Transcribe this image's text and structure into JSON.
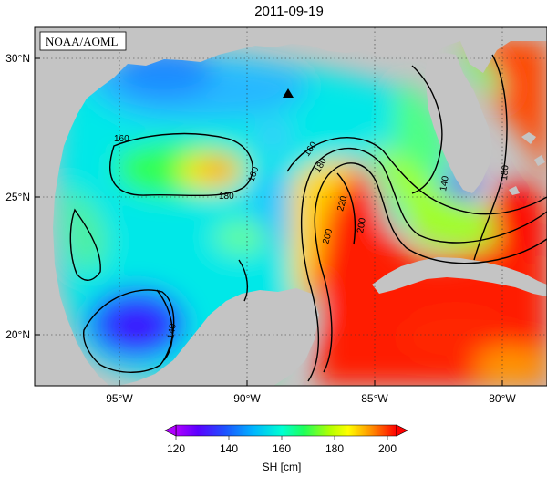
{
  "title": "2011-09-19",
  "source_label": "NOAA/AOML",
  "map": {
    "lon_range": [
      -98.0,
      -78.0
    ],
    "lat_range": [
      18.0,
      31.0
    ],
    "x_ticks": [
      "95°W",
      "90°W",
      "85°W",
      "80°W"
    ],
    "y_ticks": [
      "30°N",
      "25°N",
      "20°N"
    ],
    "gridlines": "dotted",
    "land_color": "#c4c4c4",
    "marker": "triangle"
  },
  "contours": {
    "labels": [
      "160",
      "180",
      "160",
      "160",
      "180",
      "220",
      "200",
      "200",
      "140",
      "180",
      "140"
    ]
  },
  "colorbar": {
    "ticks": [
      "120",
      "140",
      "160",
      "180",
      "200"
    ],
    "label": "SH [cm]",
    "colors": [
      "#b000ff",
      "#3c00ff",
      "#1e64ff",
      "#00c8ff",
      "#00ffc8",
      "#32ff32",
      "#c8ff00",
      "#ffff00",
      "#ffaa00",
      "#ff5000",
      "#ff0000"
    ]
  }
}
